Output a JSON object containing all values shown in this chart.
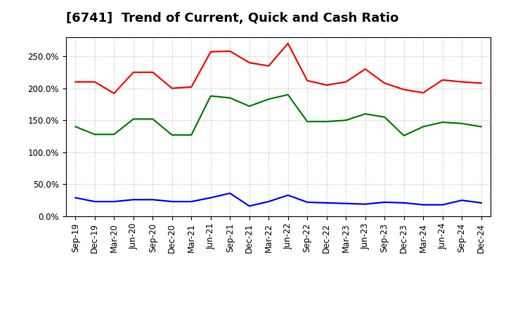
{
  "title": "[6741]  Trend of Current, Quick and Cash Ratio",
  "x_labels": [
    "Sep-19",
    "Dec-19",
    "Mar-20",
    "Jun-20",
    "Sep-20",
    "Dec-20",
    "Mar-21",
    "Jun-21",
    "Sep-21",
    "Dec-21",
    "Mar-22",
    "Jun-22",
    "Sep-22",
    "Dec-22",
    "Mar-23",
    "Jun-23",
    "Sep-23",
    "Dec-23",
    "Mar-24",
    "Jun-24",
    "Sep-24",
    "Dec-24"
  ],
  "current_ratio": [
    210,
    210,
    192,
    225,
    225,
    200,
    202,
    257,
    258,
    240,
    235,
    270,
    212,
    205,
    210,
    230,
    208,
    198,
    193,
    213,
    210,
    208
  ],
  "quick_ratio": [
    140,
    128,
    128,
    152,
    152,
    127,
    127,
    188,
    185,
    172,
    183,
    190,
    148,
    148,
    150,
    160,
    155,
    126,
    140,
    147,
    145,
    140
  ],
  "cash_ratio": [
    29,
    23,
    23,
    26,
    26,
    23,
    23,
    29,
    36,
    16,
    23,
    33,
    22,
    21,
    20,
    19,
    22,
    21,
    18,
    18,
    25,
    21
  ],
  "current_color": "#FF0000",
  "quick_color": "#008000",
  "cash_color": "#0000FF",
  "background_color": "#FFFFFF",
  "grid_color": "#BBBBBB",
  "ylim": [
    0,
    280
  ],
  "yticks": [
    0,
    50,
    100,
    150,
    200,
    250
  ],
  "title_fontsize": 13,
  "tick_fontsize": 8.5,
  "legend_fontsize": 9.5
}
